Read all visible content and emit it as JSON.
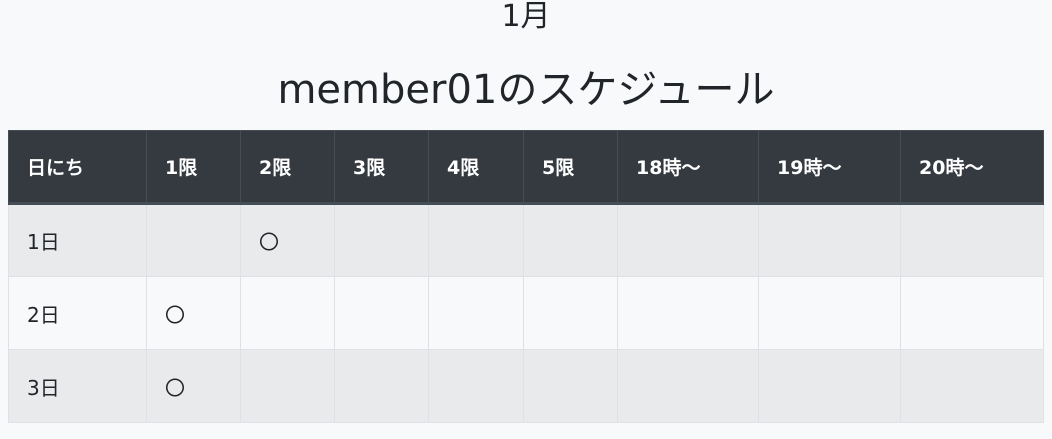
{
  "month_title": "1月",
  "schedule_title": "member01のスケジュール",
  "table": {
    "headers": [
      "日にち",
      "1限",
      "2限",
      "3限",
      "4限",
      "5限",
      "18時〜",
      "19時〜",
      "20時〜"
    ],
    "rows": [
      [
        "1日",
        "",
        "〇",
        "",
        "",
        "",
        "",
        "",
        ""
      ],
      [
        "2日",
        "〇",
        "",
        "",
        "",
        "",
        "",
        "",
        ""
      ],
      [
        "3日",
        "〇",
        "",
        "",
        "",
        "",
        "",
        "",
        ""
      ]
    ]
  },
  "colors": {
    "header_bg": "#343a40",
    "header_text": "#ffffff",
    "striped_row_bg": "#e9eaec",
    "page_bg": "#f8f9fa"
  }
}
